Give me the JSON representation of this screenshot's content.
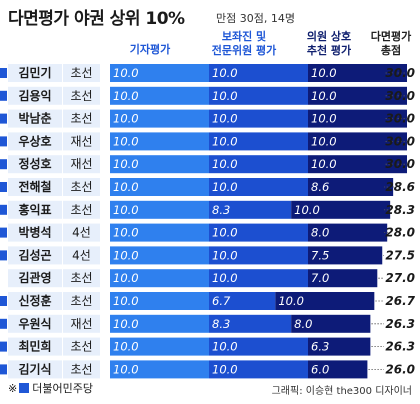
{
  "header": {
    "title": "다면평가 야권 상위 10%",
    "subtitle": "만점 30점, 14명"
  },
  "columns": {
    "self": "기자평가",
    "aide_line1": "보좌진 및",
    "aide_line2": "전문위원 평가",
    "peer_line1": "의원 상호",
    "peer_line2": "추천 평가",
    "total_line1": "다면평가",
    "total_line2": "총점"
  },
  "footer": {
    "note_mark": "※",
    "legend_label": "더불어민주당",
    "credit": "그래픽: 이승현 the300 디자이너"
  },
  "colors": {
    "name_bg": "#e7effb",
    "self": "#2f80ee",
    "aide": "#1c4fd0",
    "peer": "#0d1b78",
    "accent": "#1f57d6"
  },
  "chart_data": {
    "type": "bar",
    "stacked": true,
    "orientation": "horizontal",
    "max": 30,
    "series": [
      {
        "name": "기자평가",
        "key": "self"
      },
      {
        "name": "보좌진 및 전문위원 평가",
        "key": "aide"
      },
      {
        "name": "의원 상호 추천 평가",
        "key": "peer"
      }
    ],
    "rows": [
      {
        "name": "김민기",
        "term": "초선",
        "party": true,
        "self": "10.0",
        "aide": "10.0",
        "peer": "10.0",
        "total": "30.0"
      },
      {
        "name": "김용익",
        "term": "초선",
        "party": true,
        "self": "10.0",
        "aide": "10.0",
        "peer": "10.0",
        "total": "30.0"
      },
      {
        "name": "박남춘",
        "term": "초선",
        "party": true,
        "self": "10.0",
        "aide": "10.0",
        "peer": "10.0",
        "total": "30.0"
      },
      {
        "name": "우상호",
        "term": "재선",
        "party": true,
        "self": "10.0",
        "aide": "10.0",
        "peer": "10.0",
        "total": "30.0"
      },
      {
        "name": "정성호",
        "term": "재선",
        "party": true,
        "self": "10.0",
        "aide": "10.0",
        "peer": "10.0",
        "total": "30.0"
      },
      {
        "name": "전해철",
        "term": "초선",
        "party": true,
        "self": "10.0",
        "aide": "10.0",
        "peer": "8.6",
        "total": "28.6"
      },
      {
        "name": "홍익표",
        "term": "초선",
        "party": true,
        "self": "10.0",
        "aide": "8.3",
        "peer": "10.0",
        "total": "28.3"
      },
      {
        "name": "박병석",
        "term": "4선",
        "party": true,
        "self": "10.0",
        "aide": "10.0",
        "peer": "8.0",
        "total": "28.0"
      },
      {
        "name": "김성곤",
        "term": "4선",
        "party": true,
        "self": "10.0",
        "aide": "10.0",
        "peer": "7.5",
        "total": "27.5"
      },
      {
        "name": "김관영",
        "term": "초선",
        "party": false,
        "self": "10.0",
        "aide": "10.0",
        "peer": "7.0",
        "total": "27.0"
      },
      {
        "name": "신정훈",
        "term": "초선",
        "party": true,
        "self": "10.0",
        "aide": "6.7",
        "peer": "10.0",
        "total": "26.7"
      },
      {
        "name": "우원식",
        "term": "재선",
        "party": true,
        "self": "10.0",
        "aide": "8.3",
        "peer": "8.0",
        "total": "26.3"
      },
      {
        "name": "최민희",
        "term": "초선",
        "party": true,
        "self": "10.0",
        "aide": "10.0",
        "peer": "6.3",
        "total": "26.3"
      },
      {
        "name": "김기식",
        "term": "초선",
        "party": true,
        "self": "10.0",
        "aide": "10.0",
        "peer": "6.0",
        "total": "26.0"
      }
    ]
  }
}
